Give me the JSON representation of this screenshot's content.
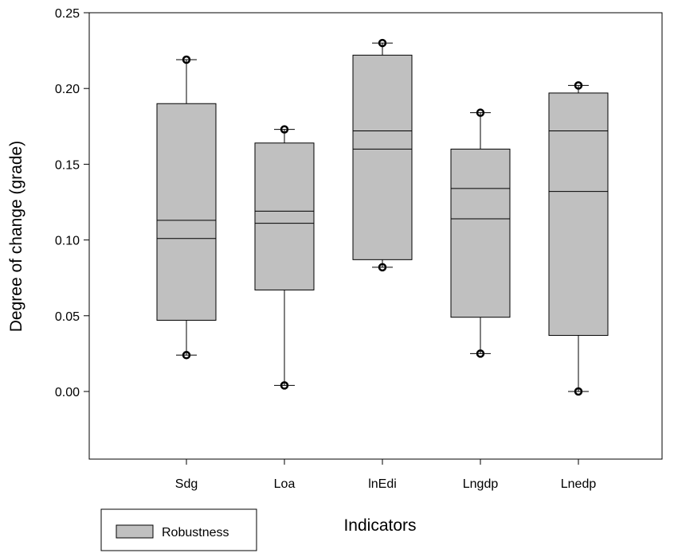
{
  "chart_data": {
    "type": "box",
    "xlabel": "Indicators",
    "ylabel": "Degree of change (grade)",
    "ylim": [
      -0.045,
      0.25
    ],
    "yticks": [
      "0.00",
      "0.05",
      "0.10",
      "0.15",
      "0.20",
      "0.25"
    ],
    "categories": [
      "Sdg",
      "Loa",
      "lnEdi",
      "Lngdp",
      "Lnedp"
    ],
    "series": [
      {
        "name": "Robustness",
        "color": "#c0c0c0",
        "boxes": [
          {
            "category": "Sdg",
            "min": 0.024,
            "q1": 0.047,
            "median": 0.101,
            "mean": 0.113,
            "q3": 0.19,
            "max": 0.219
          },
          {
            "category": "Loa",
            "min": 0.004,
            "q1": 0.067,
            "median": 0.111,
            "mean": 0.119,
            "q3": 0.164,
            "max": 0.173
          },
          {
            "category": "lnEdi",
            "min": 0.082,
            "q1": 0.087,
            "median": 0.16,
            "mean": 0.172,
            "q3": 0.222,
            "max": 0.23
          },
          {
            "category": "Lngdp",
            "min": 0.025,
            "q1": 0.049,
            "median": 0.114,
            "mean": 0.134,
            "q3": 0.16,
            "max": 0.184
          },
          {
            "category": "Lnedp",
            "min": 0.0,
            "q1": 0.037,
            "median": 0.132,
            "mean": 0.172,
            "q3": 0.197,
            "max": 0.202
          }
        ]
      }
    ],
    "legend": {
      "position": "bottom-left",
      "entries": [
        "Robustness"
      ]
    }
  }
}
